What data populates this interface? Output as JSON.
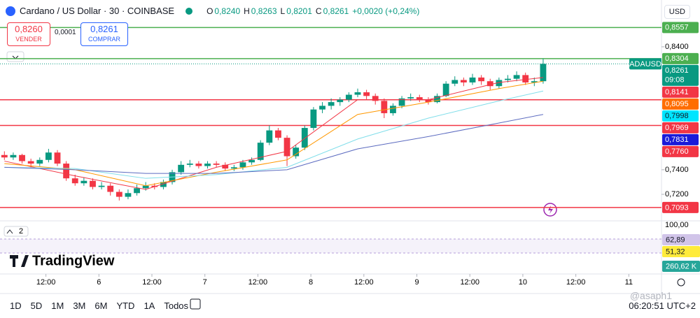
{
  "header": {
    "title": "Cardano / US Dollar · 30 · COINBASE",
    "ohlc": [
      {
        "key": "O",
        "value": "0,8240"
      },
      {
        "key": "H",
        "value": "0,8263"
      },
      {
        "key": "L",
        "value": "0,8201"
      },
      {
        "key": "C",
        "value": "0,8261"
      }
    ],
    "change": "+0,0020 (+0,24%)",
    "currency": "USD"
  },
  "trade": {
    "sell_price": "0,8260",
    "sell_label": "VENDER",
    "spread": "0,0001",
    "buy_price": "0,8261",
    "buy_label": "COMPRAR"
  },
  "chart_data": {
    "type": "candlestick",
    "ylim": [
      0.699,
      0.861
    ],
    "yticks": [
      {
        "value": 0.84,
        "label": "0,8400"
      },
      {
        "value": 0.74,
        "label": "0,7400"
      },
      {
        "value": 0.72,
        "label": "0,7200"
      }
    ],
    "xlim": [
      -0.5,
      74.4
    ],
    "xticks": [
      {
        "value": 4.7,
        "label": "12:00"
      },
      {
        "value": 10.7,
        "label": "6"
      },
      {
        "value": 16.7,
        "label": "12:00"
      },
      {
        "value": 22.7,
        "label": "7"
      },
      {
        "value": 28.7,
        "label": "12:00"
      },
      {
        "value": 34.7,
        "label": "8"
      },
      {
        "value": 40.7,
        "label": "12:00"
      },
      {
        "value": 46.7,
        "label": "9"
      },
      {
        "value": 52.7,
        "label": "12:00"
      },
      {
        "value": 58.7,
        "label": "10"
      },
      {
        "value": 64.7,
        "label": "12:00"
      },
      {
        "value": 70.7,
        "label": "11"
      }
    ],
    "up_color": "#089981",
    "down_color": "#f23645",
    "candles": {
      "open": [
        0.752,
        0.75,
        0.752,
        0.747,
        0.745,
        0.748,
        0.754,
        0.745,
        0.733,
        0.729,
        0.731,
        0.726,
        0.727,
        0.722,
        0.718,
        0.721,
        0.725,
        0.727,
        0.726,
        0.73,
        0.738,
        0.744,
        0.745,
        0.743,
        0.745,
        0.744,
        0.741,
        0.742,
        0.746,
        0.748,
        0.762,
        0.772,
        0.766,
        0.751,
        0.758,
        0.774,
        0.789,
        0.792,
        0.795,
        0.797,
        0.801,
        0.803,
        0.8,
        0.796,
        0.786,
        0.792,
        0.798,
        0.799,
        0.797,
        0.795,
        0.8,
        0.81,
        0.813,
        0.811,
        0.815,
        0.812,
        0.808,
        0.813,
        0.814,
        0.817,
        0.811,
        0.812
      ],
      "high": [
        0.755,
        0.754,
        0.753,
        0.749,
        0.75,
        0.757,
        0.756,
        0.747,
        0.736,
        0.734,
        0.733,
        0.73,
        0.729,
        0.724,
        0.724,
        0.728,
        0.73,
        0.729,
        0.732,
        0.74,
        0.747,
        0.748,
        0.747,
        0.747,
        0.747,
        0.746,
        0.744,
        0.748,
        0.75,
        0.764,
        0.776,
        0.774,
        0.768,
        0.76,
        0.776,
        0.791,
        0.795,
        0.798,
        0.799,
        0.803,
        0.806,
        0.805,
        0.802,
        0.798,
        0.794,
        0.8,
        0.802,
        0.801,
        0.799,
        0.802,
        0.812,
        0.816,
        0.815,
        0.818,
        0.817,
        0.814,
        0.815,
        0.817,
        0.82,
        0.819,
        0.815,
        0.8304
      ],
      "low": [
        0.748,
        0.748,
        0.745,
        0.742,
        0.743,
        0.746,
        0.743,
        0.731,
        0.727,
        0.727,
        0.724,
        0.724,
        0.719,
        0.715,
        0.716,
        0.719,
        0.723,
        0.724,
        0.724,
        0.728,
        0.736,
        0.742,
        0.741,
        0.741,
        0.742,
        0.739,
        0.739,
        0.74,
        0.744,
        0.747,
        0.76,
        0.764,
        0.743,
        0.749,
        0.756,
        0.772,
        0.786,
        0.789,
        0.792,
        0.795,
        0.799,
        0.797,
        0.793,
        0.782,
        0.784,
        0.79,
        0.796,
        0.795,
        0.793,
        0.794,
        0.799,
        0.808,
        0.808,
        0.809,
        0.809,
        0.805,
        0.806,
        0.811,
        0.812,
        0.809,
        0.808,
        0.81
      ],
      "close": [
        0.75,
        0.752,
        0.747,
        0.745,
        0.748,
        0.754,
        0.745,
        0.733,
        0.729,
        0.731,
        0.726,
        0.727,
        0.722,
        0.718,
        0.721,
        0.725,
        0.727,
        0.726,
        0.73,
        0.738,
        0.744,
        0.745,
        0.743,
        0.745,
        0.744,
        0.741,
        0.742,
        0.746,
        0.748,
        0.762,
        0.772,
        0.766,
        0.751,
        0.758,
        0.774,
        0.789,
        0.792,
        0.795,
        0.797,
        0.801,
        0.803,
        0.8,
        0.796,
        0.786,
        0.792,
        0.798,
        0.799,
        0.797,
        0.795,
        0.8,
        0.81,
        0.813,
        0.811,
        0.815,
        0.812,
        0.808,
        0.813,
        0.814,
        0.817,
        0.811,
        0.812,
        0.8261
      ]
    },
    "moving_averages": [
      {
        "color": "#f23645",
        "x": [
          0,
          8,
          16,
          24,
          32,
          40,
          48,
          56,
          61
        ],
        "values": [
          0.747,
          0.735,
          0.724,
          0.742,
          0.755,
          0.797,
          0.797,
          0.811,
          0.815
        ]
      },
      {
        "color": "#ff9800",
        "x": [
          0,
          8,
          16,
          24,
          32,
          40,
          48,
          56,
          61
        ],
        "values": [
          0.745,
          0.74,
          0.727,
          0.738,
          0.748,
          0.785,
          0.795,
          0.806,
          0.812
        ]
      },
      {
        "color": "#80deea",
        "x": [
          0,
          8,
          16,
          24,
          32,
          40,
          48,
          56,
          61
        ],
        "values": [
          0.742,
          0.741,
          0.733,
          0.736,
          0.742,
          0.765,
          0.782,
          0.796,
          0.804
        ]
      },
      {
        "color": "#5c6bc0",
        "x": [
          0,
          8,
          16,
          24,
          32,
          40,
          48,
          56,
          61
        ],
        "values": [
          0.742,
          0.74,
          0.737,
          0.737,
          0.74,
          0.757,
          0.767,
          0.778,
          0.785
        ]
      }
    ],
    "levels": [
      {
        "value": 0.8557,
        "color": "#4caf50"
      },
      {
        "value": 0.8304,
        "color": "#4caf50"
      },
      {
        "value": 0.7969,
        "color": "#f23645"
      },
      {
        "value": 0.776,
        "color": "#f23645"
      },
      {
        "value": 0.7093,
        "color": "#f23645"
      }
    ],
    "last_price": {
      "name": "ADAUSD",
      "value": 0.8261,
      "label": "0,8261",
      "countdown": "09:08",
      "color": "#089981"
    },
    "price_tags": [
      {
        "value": 0.8557,
        "label": "0,8557",
        "color": "#4caf50",
        "text_color": "#ffffff"
      },
      {
        "value": 0.8304,
        "label": "0,8304",
        "color": "#4caf50",
        "text_color": "#ffffff"
      },
      {
        "value": 0.8141,
        "label": "0,8141",
        "color": "#f23645",
        "text_color": "#ffffff"
      },
      {
        "value": 0.8095,
        "label": "0,8095",
        "color": "#ff6d00",
        "text_color": "#ffffff"
      },
      {
        "value": 0.7998,
        "label": "0,7998",
        "color": "#00e5ff",
        "text_color": "#131722"
      },
      {
        "value": 0.7969,
        "label": "0,7969",
        "color": "#f23645",
        "text_color": "#ffffff"
      },
      {
        "value": 0.7831,
        "label": "0,7831",
        "color": "#1a1ad9",
        "text_color": "#ffffff"
      },
      {
        "value": 0.776,
        "label": "0,7760",
        "color": "#f23645",
        "text_color": "#ffffff"
      },
      {
        "value": 0.7093,
        "label": "0,7093",
        "color": "#f23645",
        "text_color": "#ffffff"
      }
    ]
  },
  "lower_pane": {
    "badge": "2",
    "scale_label": "100,00",
    "tags": [
      {
        "label": "62,89",
        "color": "#d1c4e9",
        "text_color": "#131722"
      },
      {
        "label": "51,32",
        "color": "#ffeb3b",
        "text_color": "#131722"
      },
      {
        "label": "260,62 K",
        "color": "#26a69a",
        "text_color": "#ffffff"
      }
    ],
    "logo": "TradingView"
  },
  "toolbar": {
    "ranges": [
      "1D",
      "5D",
      "1M",
      "3M",
      "6M",
      "YTD",
      "1A",
      "Todos"
    ],
    "clock": "06:20:51 UTC+2",
    "watermark": "@asaph1"
  }
}
